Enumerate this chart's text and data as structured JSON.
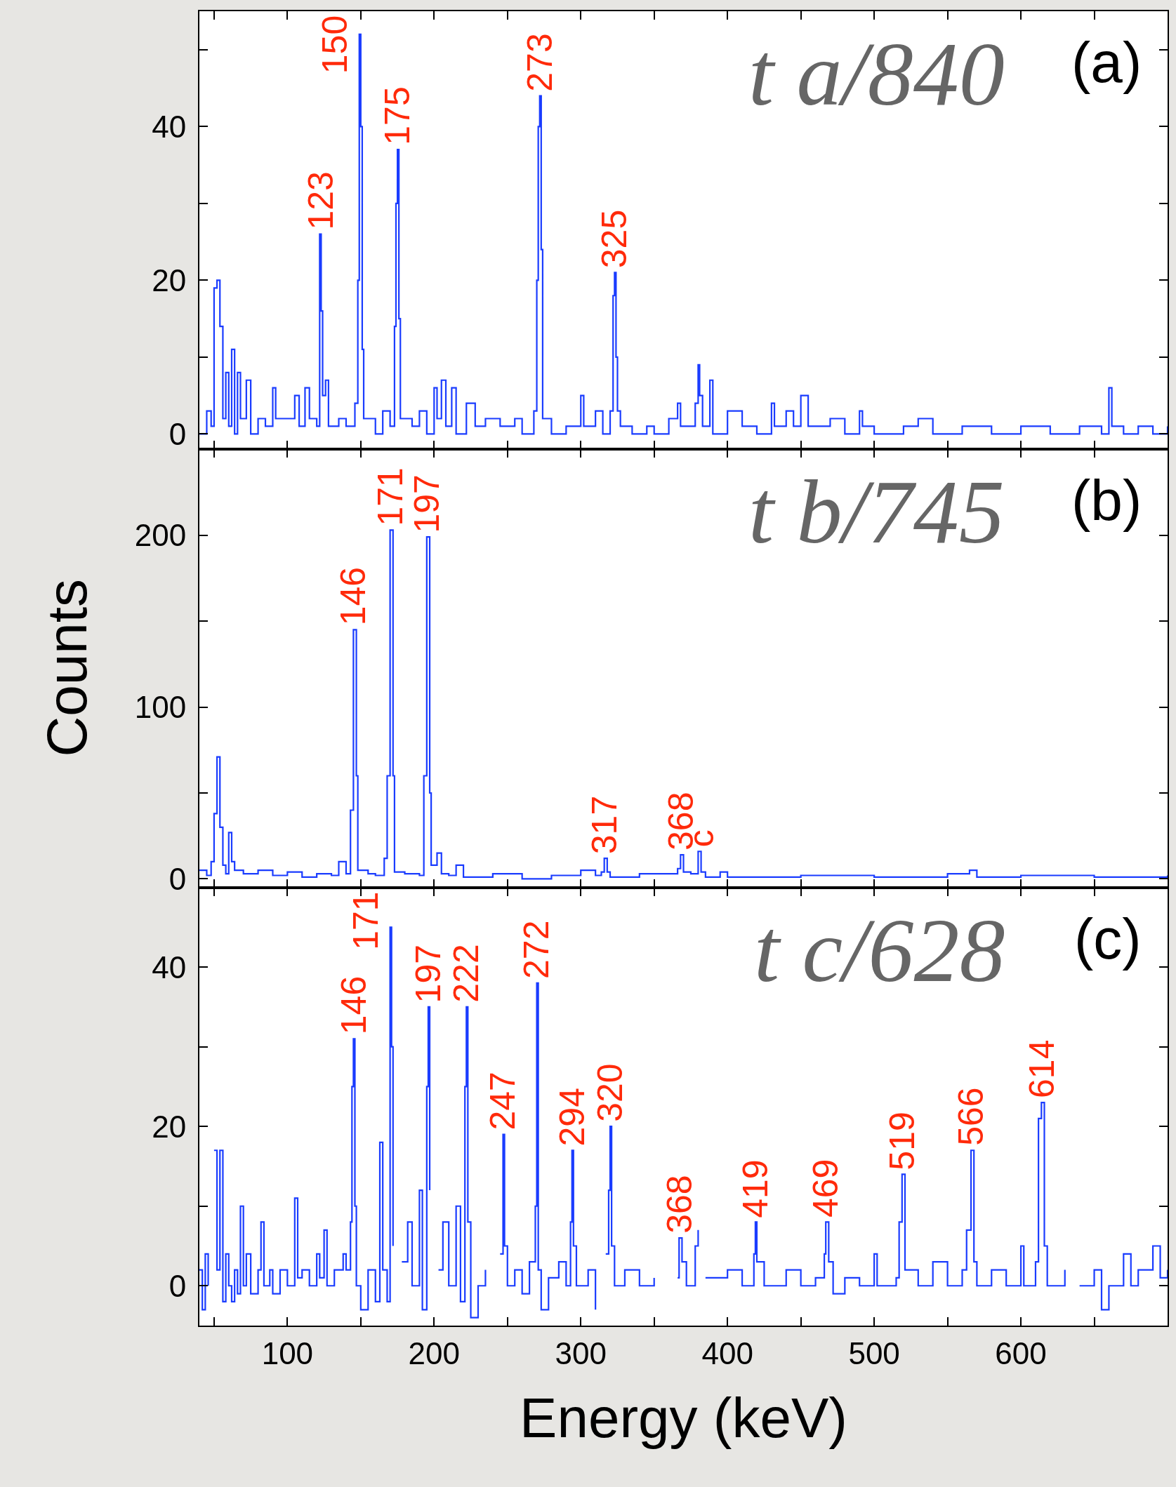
{
  "chart_data": [
    {
      "type": "step",
      "title": "t a/840",
      "annotations": [
        "(a)",
        {
          "text": "123",
          "x": 123,
          "y": 26
        },
        {
          "text": "150",
          "x": 149,
          "y": 52
        },
        {
          "text": "175",
          "x": 175,
          "y": 37
        },
        {
          "text": "273",
          "x": 272,
          "y": 44
        },
        {
          "text": "325",
          "x": 323,
          "y": 21
        }
      ],
      "series": [
        {
          "color": "#1a3cff",
          "x": [
            40,
            45,
            48,
            50,
            52,
            54,
            56,
            58,
            60,
            62,
            64,
            66,
            68,
            72,
            75,
            80,
            85,
            90,
            92,
            100,
            105,
            108,
            112,
            115,
            120,
            122,
            123,
            124,
            126,
            128,
            135,
            140,
            146,
            148,
            149,
            150,
            151,
            152,
            160,
            165,
            170,
            173,
            174,
            175,
            176,
            177,
            185,
            190,
            195,
            200,
            202,
            205,
            208,
            212,
            215,
            222,
            228,
            235,
            245,
            255,
            260,
            268,
            270,
            271,
            272,
            273,
            274,
            280,
            290,
            300,
            302,
            310,
            315,
            320,
            322,
            323,
            324,
            325,
            327,
            335,
            345,
            350,
            360,
            366,
            368,
            378,
            380,
            381,
            383,
            388,
            390,
            400,
            410,
            420,
            430,
            432,
            440,
            445,
            450,
            455,
            470,
            480,
            490,
            492,
            500,
            520,
            530,
            540,
            560,
            580,
            600,
            620,
            640,
            655,
            660,
            662,
            670,
            680,
            690,
            700
          ],
          "values": [
            0,
            3,
            1,
            19,
            20,
            14,
            2,
            8,
            1,
            11,
            0,
            8,
            2,
            7,
            0,
            2,
            1,
            6,
            2,
            2,
            5,
            1,
            6,
            2,
            1,
            26,
            16,
            5,
            7,
            1,
            2,
            1,
            4,
            20,
            52,
            40,
            11,
            2,
            0,
            3,
            1,
            14,
            30,
            37,
            15,
            2,
            1,
            3,
            0,
            6,
            2,
            7,
            1,
            6,
            0,
            4,
            1,
            2,
            1,
            2,
            0,
            3,
            20,
            40,
            44,
            24,
            2,
            0,
            1,
            5,
            1,
            3,
            0,
            3,
            18,
            21,
            10,
            3,
            1,
            0,
            1,
            0,
            2,
            4,
            1,
            4,
            9,
            5,
            1,
            7,
            0,
            3,
            1,
            0,
            4,
            1,
            3,
            1,
            5,
            1,
            2,
            0,
            3,
            1,
            0,
            1,
            2,
            0,
            1,
            0,
            1,
            0,
            1,
            0,
            6,
            1,
            0,
            1,
            0,
            1
          ]
        }
      ],
      "xlim": [
        40,
        700
      ],
      "xticks": [
        {
          "value": 50,
          "label": null
        },
        100,
        {
          "value": 150,
          "label": null
        },
        200,
        {
          "value": 250,
          "label": null
        },
        300,
        {
          "value": 350,
          "label": null
        },
        400,
        {
          "value": 450,
          "label": null
        },
        500,
        {
          "value": 550,
          "label": null
        },
        600,
        {
          "value": 650,
          "label": null
        }
      ],
      "ylim": [
        -2,
        55
      ],
      "yticks": [
        0,
        {
          "value": 10,
          "label": null
        },
        20,
        {
          "value": 30,
          "label": null
        },
        40,
        {
          "value": 50,
          "label": null
        }
      ],
      "tick_labels": "y"
    },
    {
      "type": "step",
      "title": "t b/745",
      "ylabel": "Counts",
      "annotations": [
        "(b)",
        {
          "text": "146",
          "x": 145,
          "y": 145
        },
        {
          "text": "171",
          "x": 170,
          "y": 203
        },
        {
          "text": "197",
          "x": 195,
          "y": 199
        },
        {
          "text": "317",
          "x": 316,
          "y": 12
        },
        {
          "text": "368",
          "x": 368,
          "y": 14
        },
        {
          "text": "c",
          "x": 382,
          "y": 16
        }
      ],
      "series": [
        {
          "color": "#1a3cff",
          "x": [
            40,
            45,
            48,
            50,
            52,
            54,
            56,
            58,
            60,
            62,
            64,
            70,
            80,
            90,
            100,
            110,
            120,
            130,
            135,
            140,
            143,
            145,
            147,
            148,
            155,
            160,
            166,
            168,
            170,
            172,
            173,
            180,
            190,
            193,
            195,
            197,
            198,
            202,
            205,
            210,
            215,
            220,
            240,
            260,
            280,
            300,
            310,
            314,
            316,
            318,
            320,
            340,
            360,
            366,
            368,
            370,
            375,
            380,
            382,
            385,
            395,
            400,
            450,
            500,
            550,
            565,
            570,
            600,
            650,
            700
          ],
          "values": [
            5,
            2,
            10,
            38,
            71,
            30,
            8,
            3,
            27,
            10,
            5,
            3,
            5,
            2,
            4,
            1,
            3,
            2,
            10,
            3,
            40,
            145,
            60,
            5,
            3,
            2,
            12,
            60,
            203,
            60,
            4,
            3,
            2,
            60,
            199,
            50,
            8,
            15,
            3,
            2,
            8,
            1,
            3,
            0,
            2,
            5,
            2,
            4,
            12,
            4,
            1,
            3,
            3,
            6,
            14,
            4,
            3,
            16,
            4,
            1,
            4,
            1,
            2,
            1,
            3,
            5,
            1,
            2,
            1,
            2
          ]
        }
      ],
      "xlim": [
        40,
        700
      ],
      "xticks": [
        {
          "value": 50,
          "label": null
        },
        100,
        {
          "value": 150,
          "label": null
        },
        200,
        {
          "value": 250,
          "label": null
        },
        300,
        {
          "value": 350,
          "label": null
        },
        400,
        {
          "value": 450,
          "label": null
        },
        500,
        {
          "value": 550,
          "label": null
        },
        600,
        {
          "value": 650,
          "label": null
        }
      ],
      "ylim": [
        -5,
        250
      ],
      "yticks": [
        0,
        {
          "value": 50,
          "label": null
        },
        100,
        {
          "value": 150,
          "label": null
        },
        200
      ],
      "tick_labels": "y"
    },
    {
      "type": "step",
      "title": "t c/628",
      "xlabel": "Energy (keV)",
      "annotations": [
        "(c)",
        {
          "text": "146",
          "x": 145,
          "y": 31
        },
        {
          "text": "171",
          "x": 170,
          "y": 45
        },
        {
          "text": "197",
          "x": 196,
          "y": 35
        },
        {
          "text": "222",
          "x": 222,
          "y": 35
        },
        {
          "text": "247",
          "x": 247,
          "y": 19
        },
        {
          "text": "272",
          "x": 270,
          "y": 38
        },
        {
          "text": "294",
          "x": 294,
          "y": 17
        },
        {
          "text": "320",
          "x": 320,
          "y": 20
        },
        {
          "text": "368",
          "x": 367,
          "y": 6
        },
        {
          "text": "419",
          "x": 419,
          "y": 8
        },
        {
          "text": "469",
          "x": 467,
          "y": 8
        },
        {
          "text": "519",
          "x": 519,
          "y": 14
        },
        {
          "text": "566",
          "x": 566,
          "y": 17
        },
        {
          "text": "614",
          "x": 614,
          "y": 23
        }
      ],
      "series": [
        {
          "color": "#1a3cff",
          "x": [
            40,
            42,
            44,
            46,
            48,
            50,
            52,
            54,
            56,
            58,
            60,
            62,
            64,
            66,
            68,
            70,
            72,
            75,
            80,
            82,
            84,
            88,
            90,
            95,
            100,
            105,
            107,
            110,
            115,
            120,
            122,
            125,
            127,
            132,
            138,
            140,
            143,
            144,
            145,
            146,
            147,
            150,
            155,
            160,
            163,
            165,
            168,
            170,
            171,
            172,
            174,
            178,
            182,
            185,
            190,
            192,
            195,
            196,
            197,
            198,
            203,
            206,
            210,
            215,
            218,
            221,
            222,
            223,
            225,
            230,
            235,
            240,
            245,
            247,
            248,
            250,
            255,
            260,
            265,
            269,
            270,
            271,
            273,
            278,
            285,
            290,
            293,
            294,
            295,
            297,
            305,
            310,
            315,
            317,
            319,
            320,
            321,
            323,
            330,
            340,
            350,
            360,
            366,
            367,
            369,
            372,
            378,
            380,
            382,
            385,
            400,
            410,
            418,
            419,
            420,
            425,
            440,
            450,
            460,
            466,
            467,
            469,
            472,
            480,
            490,
            500,
            502,
            515,
            517,
            519,
            521,
            530,
            540,
            550,
            560,
            563,
            566,
            568,
            570,
            580,
            590,
            600,
            602,
            610,
            612,
            614,
            616,
            618,
            630,
            637,
            640,
            650,
            655,
            660,
            670,
            675,
            680,
            690,
            695,
            700
          ],
          "values": [
            2,
            -3,
            4,
            0,
            null,
            17,
            2,
            17,
            -2,
            4,
            0,
            -2,
            2,
            -1,
            10,
            0,
            4,
            -1,
            2,
            8,
            0,
            2,
            -1,
            2,
            0,
            11,
            1,
            2,
            0,
            4,
            1,
            7,
            0,
            2,
            4,
            2,
            8,
            25,
            31,
            10,
            0,
            -3,
            2,
            -2,
            18,
            2,
            -2,
            45,
            30,
            5,
            null,
            3,
            8,
            0,
            12,
            -3,
            25,
            35,
            12,
            null,
            2,
            8,
            0,
            10,
            -2,
            25,
            35,
            8,
            -4,
            0,
            2,
            null,
            4,
            19,
            5,
            0,
            2,
            -1,
            3,
            10,
            38,
            2,
            -3,
            1,
            3,
            0,
            8,
            17,
            5,
            0,
            2,
            -3,
            null,
            4,
            12,
            20,
            5,
            0,
            2,
            0,
            1,
            null,
            1,
            6,
            3,
            0,
            5,
            7,
            null,
            1,
            2,
            0,
            4,
            8,
            3,
            0,
            2,
            0,
            1,
            4,
            8,
            3,
            -1,
            1,
            0,
            4,
            0,
            1,
            8,
            14,
            2,
            0,
            3,
            0,
            2,
            7,
            17,
            3,
            0,
            2,
            0,
            5,
            0,
            3,
            21,
            23,
            5,
            0,
            2,
            null,
            0,
            2,
            -3,
            0,
            4,
            0,
            2,
            5,
            1,
            2
          ]
        }
      ],
      "xlim": [
        40,
        700
      ],
      "xticks": [
        {
          "value": 50,
          "label": null
        },
        100,
        {
          "value": 150,
          "label": null
        },
        200,
        {
          "value": 250,
          "label": null
        },
        300,
        {
          "value": 350,
          "label": null
        },
        400,
        {
          "value": 450,
          "label": null
        },
        500,
        {
          "value": 550,
          "label": null
        },
        600,
        {
          "value": 650,
          "label": null
        }
      ],
      "ylim": [
        -5,
        50
      ],
      "yticks": [
        0,
        {
          "value": 10,
          "label": null
        },
        20,
        {
          "value": 30,
          "label": null
        },
        40
      ]
    }
  ]
}
